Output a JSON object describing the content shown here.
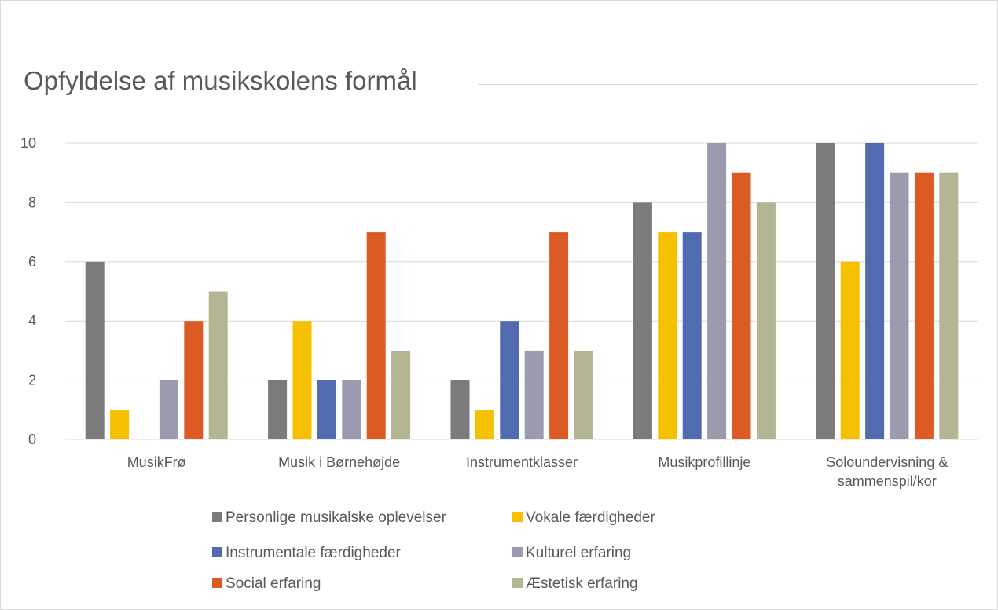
{
  "chart_data": {
    "type": "bar",
    "title": "Opfyldelse af musikskolens formål",
    "categories": [
      [
        "MusikFrø"
      ],
      [
        "Musik i Børnehøjde"
      ],
      [
        "Instrumentklasser"
      ],
      [
        "Musikprofillinje"
      ],
      [
        "Soloundervisning &",
        "sammenspil/kor"
      ]
    ],
    "series": [
      {
        "name": "Personlige musikalske oplevelser",
        "color": "#7b7b7b",
        "values": [
          6,
          2,
          2,
          8,
          10
        ]
      },
      {
        "name": "Vokale færdigheder",
        "color": "#f5c000",
        "values": [
          1,
          4,
          1,
          7,
          6
        ]
      },
      {
        "name": "Instrumentale færdigheder",
        "color": "#516bb0",
        "values": [
          0,
          2,
          4,
          7,
          10
        ]
      },
      {
        "name": "Kulturel erfaring",
        "color": "#9a9bae",
        "values": [
          2,
          2,
          3,
          10,
          9
        ]
      },
      {
        "name": "Social erfaring",
        "color": "#dc5a24",
        "values": [
          4,
          7,
          7,
          9,
          9
        ]
      },
      {
        "name": "Æstetisk erfaring",
        "color": "#b4b592",
        "values": [
          5,
          3,
          3,
          8,
          9
        ]
      }
    ],
    "ylim": [
      0,
      10
    ],
    "yticks": [
      "0",
      "2",
      "4",
      "6",
      "8",
      "10"
    ],
    "grid": true,
    "legend_position": "bottom"
  }
}
